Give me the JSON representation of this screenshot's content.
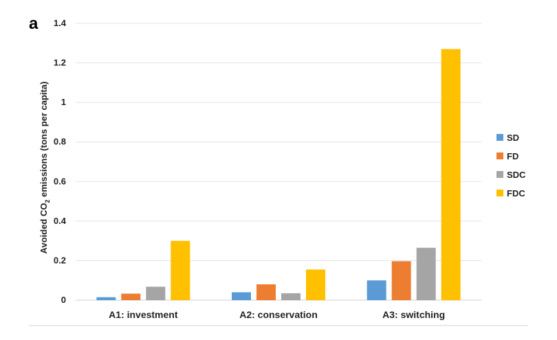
{
  "panel_label": "a",
  "chart_data": {
    "type": "bar",
    "categories": [
      "A1: investment",
      "A2: conservation",
      "A3: switching"
    ],
    "series": [
      {
        "name": "SD",
        "color": "#5b9bd5",
        "values": [
          0.015,
          0.04,
          0.1
        ]
      },
      {
        "name": "FD",
        "color": "#ed7d31",
        "values": [
          0.033,
          0.08,
          0.197
        ]
      },
      {
        "name": "SDC",
        "color": "#a5a5a5",
        "values": [
          0.068,
          0.035,
          0.265
        ]
      },
      {
        "name": "FDC",
        "color": "#ffc000",
        "values": [
          0.3,
          0.155,
          1.27
        ]
      }
    ],
    "ylabel_pre": "Avoided CO",
    "ylabel_sub": "2",
    "ylabel_post": " emissions (tons per capita)",
    "ylim": [
      0,
      1.4
    ],
    "yticks": [
      "0",
      "0.2",
      "0.4",
      "0.6",
      "0.8",
      "1",
      "1.2",
      "1.4"
    ],
    "grid": true,
    "legend_position": "right"
  }
}
